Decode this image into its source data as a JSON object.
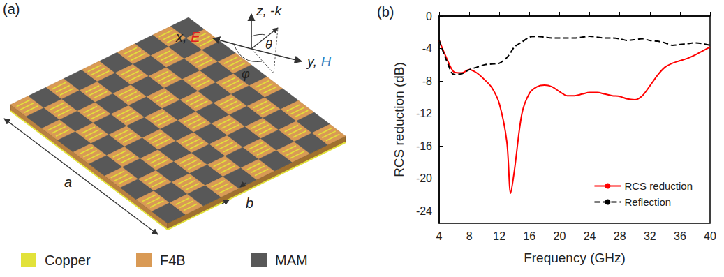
{
  "panel_a": {
    "label": "(a)",
    "dimensions": {
      "a": "a",
      "b": "b"
    },
    "coordinate_axes": {
      "z": "z, -k",
      "x": [
        "x, ",
        "E"
      ],
      "y": [
        "y, ",
        "H"
      ],
      "theta": "θ",
      "phi": "φ"
    },
    "field_colors": {
      "E": "#e02020",
      "H": "#2f7fc1"
    },
    "materials": [
      {
        "name": "Copper",
        "color": "#e2e23a"
      },
      {
        "name": "F4B",
        "color": "#d99a55"
      },
      {
        "name": "MAM",
        "color": "#585858"
      }
    ]
  },
  "chart_data": {
    "type": "line",
    "title": "(b)",
    "x_label": "Frequency (GHz)",
    "y_label": "RCS reduction (dB)",
    "x": [
      4,
      5,
      6,
      7,
      8,
      9,
      10,
      11,
      12,
      13,
      13.5,
      14,
      15,
      16,
      17,
      18,
      19,
      20,
      21,
      22,
      23,
      24,
      25,
      26,
      27,
      28,
      29,
      30,
      31,
      32,
      33,
      34,
      35,
      36,
      37,
      38,
      39,
      40
    ],
    "series": [
      {
        "name": "RCS reduction",
        "color": "#ff0000",
        "line_style": "solid",
        "marker": "none",
        "values": [
          -3,
          -5.2,
          -6.9,
          -7.0,
          -6.6,
          -7.0,
          -7.8,
          -8.8,
          -10.8,
          -15.5,
          -21.8,
          -19,
          -12,
          -9.5,
          -8.7,
          -8.5,
          -8.7,
          -9.3,
          -9.8,
          -9.8,
          -9.6,
          -9.4,
          -9.4,
          -9.6,
          -9.8,
          -9.9,
          -10.2,
          -10.3,
          -9.8,
          -8.6,
          -7.3,
          -6.3,
          -5.8,
          -5.5,
          -5.2,
          -4.8,
          -4.3,
          -3.8
        ]
      },
      {
        "name": "Reflection",
        "color": "#000000",
        "line_style": "dashed",
        "marker": "none",
        "values": [
          -3,
          -5.5,
          -7.2,
          -7.1,
          -6.6,
          -6.3,
          -6.0,
          -5.9,
          -5.8,
          -5.1,
          -4.5,
          -3.8,
          -3.2,
          -2.6,
          -2.5,
          -2.6,
          -2.7,
          -2.7,
          -2.7,
          -2.7,
          -2.6,
          -2.5,
          -2.6,
          -2.7,
          -2.7,
          -2.8,
          -3.0,
          -2.9,
          -2.8,
          -3.0,
          -3.1,
          -3.3,
          -3.6,
          -3.5,
          -3.4,
          -3.3,
          -3.4,
          -3.6
        ]
      }
    ],
    "xlim": [
      4,
      40
    ],
    "xticks": [
      4,
      8,
      12,
      16,
      20,
      24,
      28,
      32,
      36,
      40
    ],
    "ylim": [
      -25.5,
      0
    ],
    "yticks": [
      -24,
      -20,
      -16,
      -12,
      -8,
      -4,
      0
    ],
    "grid": false,
    "legend": "lower right"
  }
}
